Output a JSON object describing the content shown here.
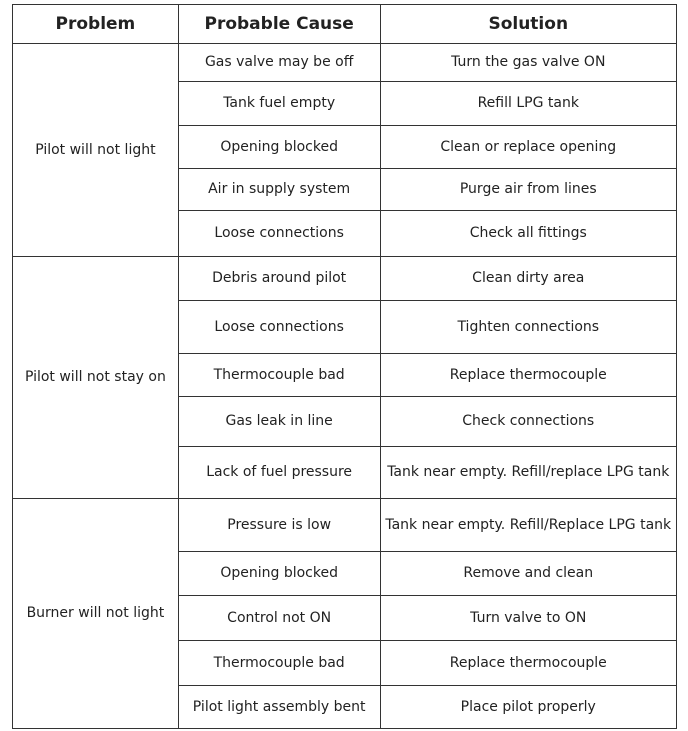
{
  "headers": [
    "Problem",
    "Probable Cause",
    "Solution"
  ],
  "groups": [
    {
      "problem": "Pilot will not light",
      "rows": [
        {
          "cause": "Gas valve may be off",
          "solution": "Turn the gas valve ON"
        },
        {
          "cause": "Tank fuel empty",
          "solution": "Refill LPG tank"
        },
        {
          "cause": "Opening blocked",
          "solution": "Clean or replace opening"
        },
        {
          "cause": "Air in supply system",
          "solution": "Purge air from lines"
        },
        {
          "cause": "Loose connections",
          "solution": "Check all fittings"
        }
      ]
    },
    {
      "problem": "Pilot will not stay on",
      "rows": [
        {
          "cause": "Debris around pilot",
          "solution": "Clean dirty area"
        },
        {
          "cause": "Loose connections",
          "solution": "Tighten connections"
        },
        {
          "cause": "Thermocouple bad",
          "solution": "Replace thermocouple"
        },
        {
          "cause": "Gas leak in line",
          "solution": "Check connections"
        },
        {
          "cause": "Lack of fuel pressure",
          "solution": "Tank near empty. Refill/replace LPG tank"
        }
      ]
    },
    {
      "problem": "Burner will not light",
      "rows": [
        {
          "cause": "Pressure is low",
          "solution": "Tank near empty. Refill/Replace LPG tank"
        },
        {
          "cause": "Opening blocked",
          "solution": "Remove and clean"
        },
        {
          "cause": "Control not ON",
          "solution": "Turn valve to ON"
        },
        {
          "cause": "Thermocouple bad",
          "solution": "Replace thermocouple"
        },
        {
          "cause": "Pilot light assembly bent",
          "solution": "Place pilot properly"
        }
      ]
    }
  ]
}
